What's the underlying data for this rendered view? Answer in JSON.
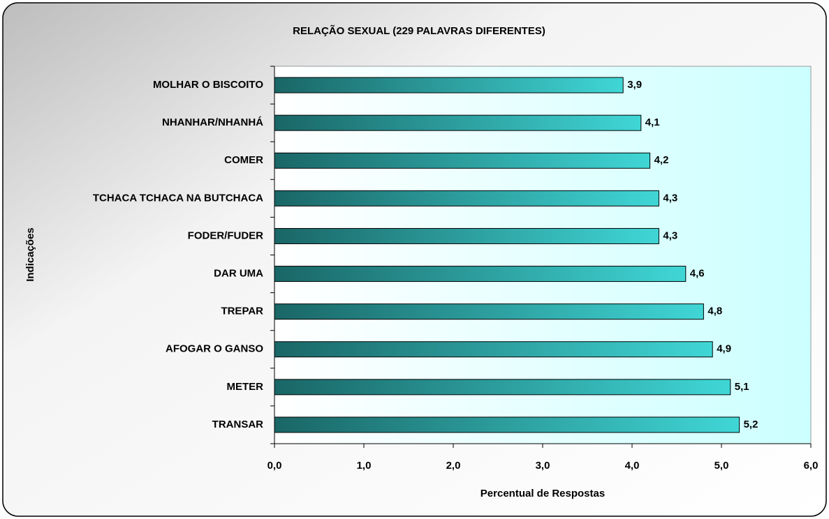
{
  "chart_data": {
    "type": "barh",
    "title": "RELAÇÃO SEXUAL (229 PALAVRAS DIFERENTES)",
    "xlabel": "Percentual de Respostas",
    "ylabel": "Indicações",
    "categories": [
      "MOLHAR O BISCOITO",
      "NHANHAR/NHANHÁ",
      "COMER",
      "TCHACA TCHACA NA BUTCHACA",
      "FODER/FUDER",
      "DAR UMA",
      "TREPAR",
      "AFOGAR O GANSO",
      "METER",
      "TRANSAR"
    ],
    "values": [
      3.9,
      4.1,
      4.2,
      4.3,
      4.3,
      4.6,
      4.8,
      4.9,
      5.1,
      5.2
    ],
    "value_labels": [
      "3,9",
      "4,1",
      "4,2",
      "4,3",
      "4,3",
      "4,6",
      "4,8",
      "4,9",
      "5,1",
      "5,2"
    ],
    "color": "#33c9c9",
    "xlim": [
      0,
      6
    ],
    "xticks": [
      {
        "value": 0,
        "label": "0,0"
      },
      {
        "value": 1,
        "label": "1,0"
      },
      {
        "value": 2,
        "label": "2,0"
      },
      {
        "value": 3,
        "label": "3,0"
      },
      {
        "value": 4,
        "label": "4,0"
      },
      {
        "value": 5,
        "label": "5,0"
      },
      {
        "value": 6,
        "label": "6,0"
      }
    ]
  }
}
